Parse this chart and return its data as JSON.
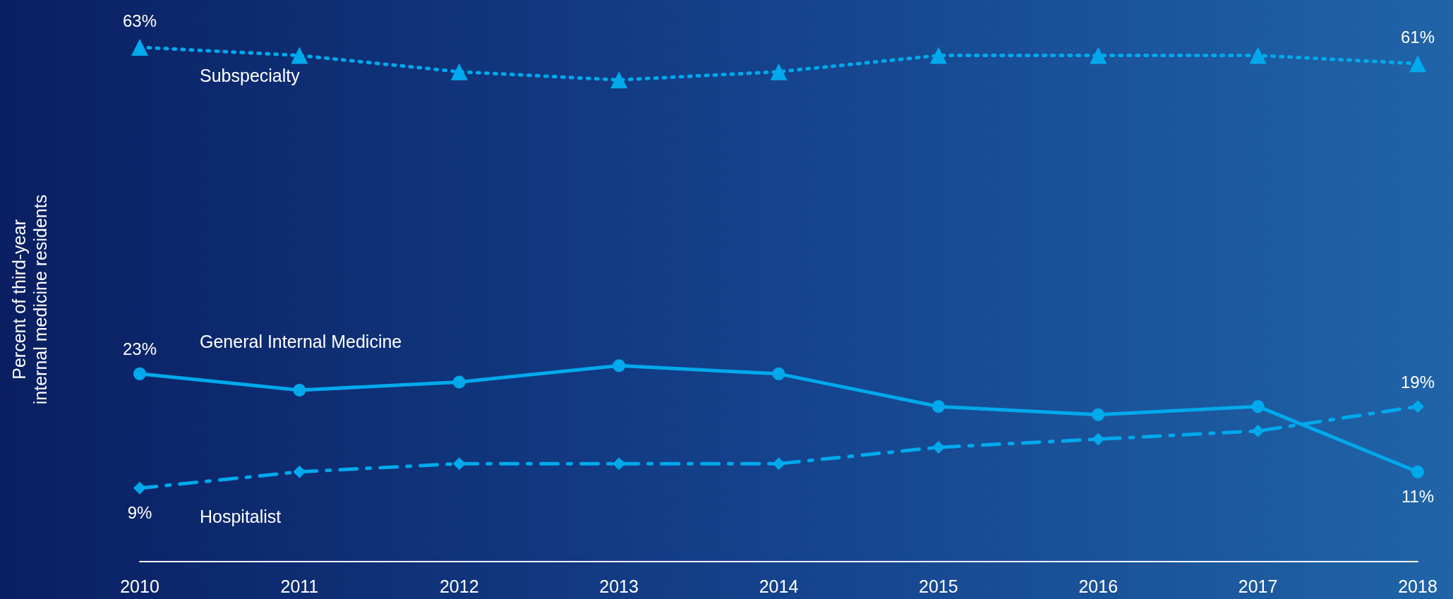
{
  "chart_data": {
    "type": "line",
    "ylabel": "Percent of third-year\ninternal medicine residents",
    "categories": [
      "2010",
      "2011",
      "2012",
      "2013",
      "2014",
      "2015",
      "2016",
      "2017",
      "2018"
    ],
    "tick_labels": "x",
    "grid": false,
    "legend": false,
    "series": [
      {
        "name": "Subspecialty",
        "color": "#00a9ec",
        "marker": "triangle",
        "line_style": "dotted",
        "values": [
          63,
          62,
          60,
          59,
          60,
          62,
          62,
          62,
          61
        ],
        "value_labels": [
          "63%",
          null,
          null,
          null,
          null,
          null,
          null,
          null,
          "61%"
        ]
      },
      {
        "name": "General Internal Medicine",
        "color": "#00a9ec",
        "marker": "circle",
        "line_style": "solid",
        "values": [
          23,
          21,
          22,
          24,
          23,
          19,
          18,
          19,
          11
        ],
        "value_labels": [
          "23%",
          null,
          null,
          null,
          null,
          null,
          null,
          null,
          "11%"
        ]
      },
      {
        "name": "Hospitalist",
        "color": "#00a9ec",
        "marker": "diamond",
        "line_style": "dashed",
        "values": [
          9,
          11,
          12,
          12,
          12,
          14,
          15,
          16,
          19
        ],
        "value_labels": [
          "9%",
          null,
          null,
          null,
          null,
          null,
          null,
          null,
          "19%"
        ]
      }
    ]
  }
}
